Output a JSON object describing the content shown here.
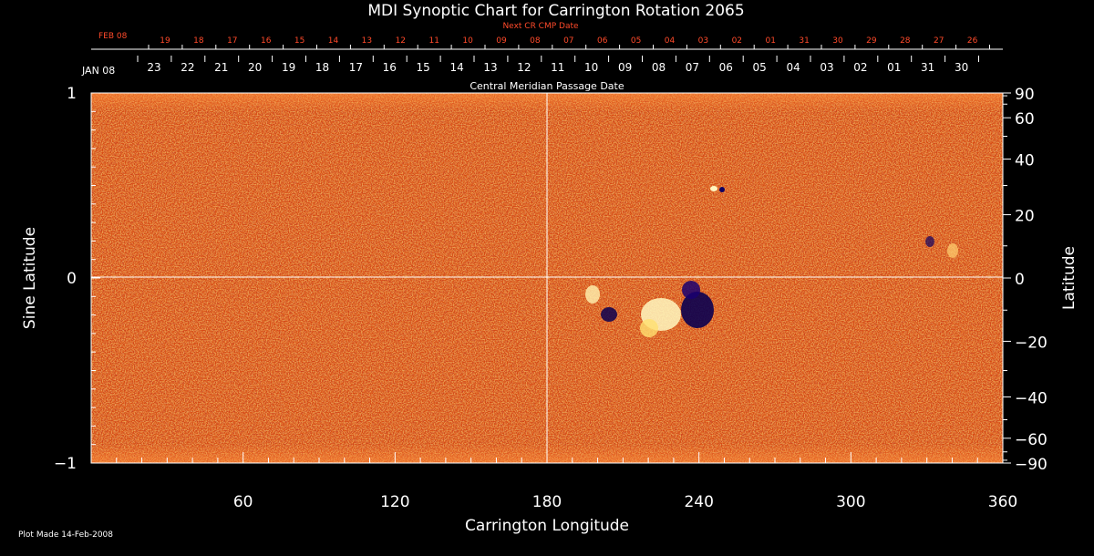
{
  "title": "MDI Synoptic Chart for Carrington Rotation 2065",
  "next_cr_label": "Next CR CMP Date",
  "feb_label": "FEB 08",
  "jan_label": "JAN 08",
  "next_cr_dates": [
    "19",
    "18",
    "17",
    "16",
    "15",
    "14",
    "13",
    "12",
    "11",
    "10",
    "09",
    "08",
    "07",
    "06",
    "05",
    "04",
    "03",
    "02",
    "01",
    "31",
    "30",
    "29",
    "28",
    "27",
    "26"
  ],
  "cmp_dates": [
    "23",
    "22",
    "21",
    "20",
    "19",
    "18",
    "17",
    "16",
    "15",
    "14",
    "13",
    "12",
    "11",
    "10",
    "09",
    "08",
    "07",
    "06",
    "05",
    "04",
    "03",
    "02",
    "01",
    "31",
    "30"
  ],
  "cmp_label": "Central Meridian Passage Date",
  "xlabel": "Carrington Longitude",
  "ylabel_left": "Sine Latitude",
  "ylabel_right": "Latitude",
  "footer": "Plot Made 14-Feb-2008",
  "colors": {
    "map_base": "#e8601a",
    "label_red": "#ff4a2a",
    "axis": "#ffffff"
  },
  "chart_data": {
    "type": "heatmap",
    "x_range": [
      0,
      360
    ],
    "y_range": [
      -1,
      1
    ],
    "x_ticks": [
      60,
      120,
      180,
      240,
      300,
      360
    ],
    "y_ticks_left": [
      1,
      0,
      -1
    ],
    "y_ticks_right": [
      90,
      60,
      40,
      20,
      0,
      -20,
      -40,
      -60,
      -90
    ],
    "grid": "lines at longitude 180 and sine latitude 0"
  }
}
